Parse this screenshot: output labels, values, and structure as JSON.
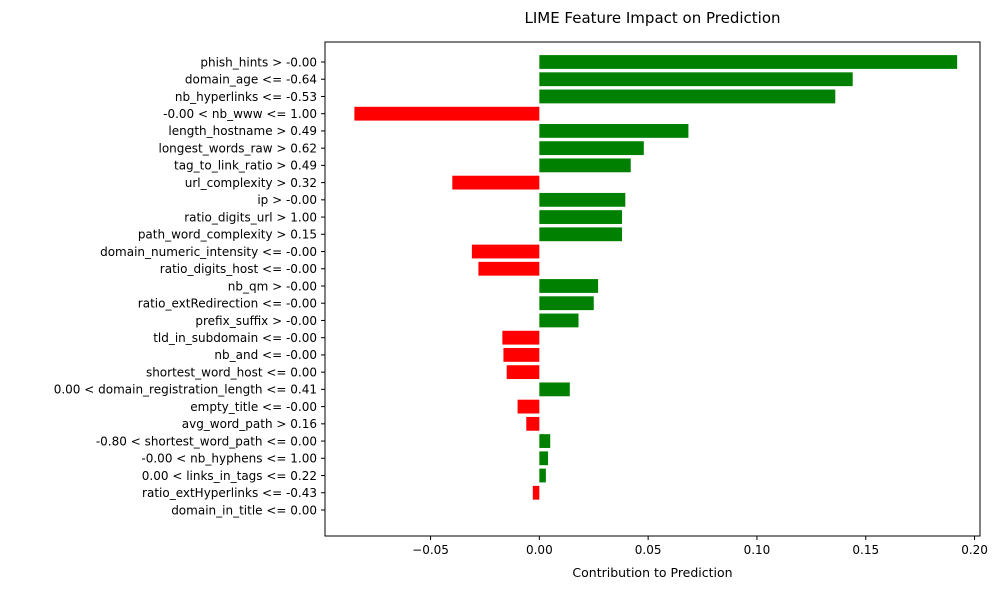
{
  "chart_data": {
    "type": "bar",
    "orientation": "horizontal",
    "title": "LIME Feature Impact on Prediction",
    "xlabel": "Contribution to Prediction",
    "ylabel": "",
    "xlim": [
      -0.0985,
      0.2025
    ],
    "xticks": [
      -0.05,
      0.0,
      0.05,
      0.1,
      0.15,
      0.2
    ],
    "xtick_labels": [
      "−0.05",
      "0.00",
      "0.05",
      "0.10",
      "0.15",
      "0.20"
    ],
    "grid": false,
    "legend": "none",
    "colors": {
      "positive": "#008000",
      "negative": "#ff0000"
    },
    "categories": [
      "phish_hints > -0.00",
      "domain_age <= -0.64",
      "nb_hyperlinks <= -0.53",
      "-0.00 < nb_www <= 1.00",
      "length_hostname > 0.49",
      "longest_words_raw > 0.62",
      "tag_to_link_ratio > 0.49",
      "url_complexity > 0.32",
      "ip > -0.00",
      "ratio_digits_url > 1.00",
      "path_word_complexity > 0.15",
      "domain_numeric_intensity <= -0.00",
      "ratio_digits_host <= -0.00",
      "nb_qm > -0.00",
      "ratio_extRedirection <= -0.00",
      "prefix_suffix > -0.00",
      "tld_in_subdomain <= -0.00",
      "nb_and <= -0.00",
      "shortest_word_host <= 0.00",
      "0.00 < domain_registration_length <= 0.41",
      "empty_title <= -0.00",
      "avg_word_path > 0.16",
      "-0.80 < shortest_word_path <= 0.00",
      "-0.00 < nb_hyphens <= 1.00",
      "0.00 < links_in_tags <= 0.22",
      "ratio_extHyperlinks <= -0.43",
      "domain_in_title <= 0.00"
    ],
    "values": [
      0.192,
      0.144,
      0.136,
      -0.085,
      0.0685,
      0.048,
      0.042,
      -0.04,
      0.0395,
      0.038,
      0.038,
      -0.031,
      -0.028,
      0.027,
      0.025,
      0.018,
      -0.017,
      -0.0165,
      -0.015,
      0.014,
      -0.01,
      -0.006,
      0.005,
      0.004,
      0.003,
      -0.003,
      0.0
    ]
  }
}
